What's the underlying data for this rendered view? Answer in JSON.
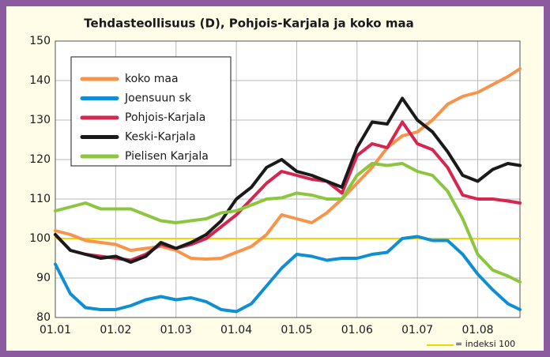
{
  "chart_data": {
    "type": "line",
    "title": "Tehdasteollisuus (D), Pohjois-Karjala ja koko maa",
    "x": [
      0,
      0.25,
      0.5,
      0.75,
      1,
      1.25,
      1.5,
      1.75,
      2,
      2.25,
      2.5,
      2.75,
      3,
      3.25,
      3.5,
      3.75,
      4,
      4.25,
      4.5,
      4.75,
      5,
      5.25,
      5.5,
      5.75,
      6,
      6.25,
      6.5,
      6.75,
      7,
      7.25,
      7.5,
      7.7
    ],
    "xlim": [
      0,
      7.7
    ],
    "xticks": [
      {
        "value": 0,
        "label": "01.01"
      },
      {
        "value": 1,
        "label": "01.02"
      },
      {
        "value": 2,
        "label": "01.03"
      },
      {
        "value": 3,
        "label": "01.04"
      },
      {
        "value": 4,
        "label": "01.05"
      },
      {
        "value": 5,
        "label": "01.06"
      },
      {
        "value": 6,
        "label": "01.07"
      },
      {
        "value": 7,
        "label": "01.08"
      }
    ],
    "ylim": [
      80,
      150
    ],
    "yticks": [
      80,
      90,
      100,
      110,
      120,
      130,
      140,
      150
    ],
    "grid": true,
    "legend": "upper left",
    "reference": {
      "value": 100,
      "label": "= indeksi 100",
      "color": "#f2d600"
    },
    "series": [
      {
        "name": "koko maa",
        "color": "#f7944a",
        "values": [
          102,
          101,
          99.5,
          99,
          98.5,
          97,
          97.5,
          98,
          97,
          95,
          94.8,
          95,
          96.5,
          98,
          101,
          106,
          105,
          104,
          106.5,
          110,
          114,
          118,
          123,
          126,
          127,
          130,
          134,
          136,
          137,
          139,
          141,
          143
        ]
      },
      {
        "name": "Joensuun sk",
        "color": "#0f8fd3",
        "values": [
          93.5,
          86,
          82.5,
          82,
          82,
          83,
          84.5,
          85.3,
          84.5,
          85,
          84,
          82,
          81.5,
          83.5,
          88,
          92.5,
          96,
          95.5,
          94.5,
          95,
          95,
          96,
          96.5,
          100,
          100.5,
          99.5,
          99.5,
          96,
          91,
          87,
          83.5,
          82
        ]
      },
      {
        "name": "Pohjois-Karjala",
        "color": "#d4264f",
        "values": [
          101,
          97,
          96,
          95.5,
          95,
          94.5,
          96,
          98.5,
          97.5,
          98.5,
          100,
          103,
          106,
          110,
          114,
          117,
          116,
          115,
          114.5,
          111.5,
          121,
          124,
          123,
          129.5,
          124,
          122.5,
          118,
          111,
          110,
          110,
          109.5,
          109
        ]
      },
      {
        "name": "Keski-Karjala",
        "color": "#1a1a1a",
        "values": [
          101,
          97,
          96,
          95,
          95.5,
          94,
          95.5,
          99,
          97.5,
          99,
          101,
          104.5,
          110,
          113,
          118,
          120,
          117,
          116,
          114.5,
          113,
          123,
          129.5,
          129,
          135.5,
          130,
          127,
          122,
          116,
          114.5,
          117.5,
          119,
          118.5
        ]
      },
      {
        "name": "Pielisen Karjala",
        "color": "#8cc63f",
        "values": [
          107,
          108,
          109,
          107.5,
          107.5,
          107.5,
          106,
          104.5,
          104,
          104.5,
          105,
          106.5,
          107,
          108.5,
          110,
          110.3,
          111.5,
          111,
          110,
          110,
          116,
          119,
          118.5,
          119,
          117,
          116,
          112,
          105,
          96,
          92,
          90.5,
          89
        ]
      }
    ]
  }
}
